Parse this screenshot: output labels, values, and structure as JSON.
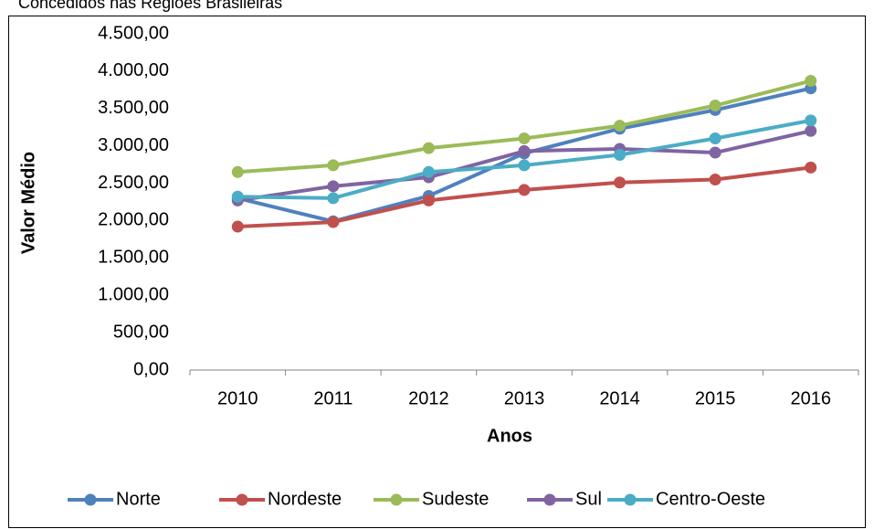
{
  "chart_data": {
    "type": "line",
    "title": "Concedidos nas Regiões Brasileiras",
    "xlabel": "Anos",
    "ylabel": "Valor Médio",
    "categories": [
      "2010",
      "2011",
      "2012",
      "2013",
      "2014",
      "2015",
      "2016"
    ],
    "series": [
      {
        "name": "Norte",
        "color": "#4f81bd",
        "values": [
          2300,
          1990,
          2330,
          2900,
          3230,
          3480,
          3770
        ]
      },
      {
        "name": "Nordeste",
        "color": "#c0504d",
        "values": [
          1920,
          1980,
          2270,
          2410,
          2510,
          2550,
          2710
        ]
      },
      {
        "name": "Sudeste",
        "color": "#9bbb59",
        "values": [
          2650,
          2740,
          2970,
          3100,
          3270,
          3540,
          3870
        ]
      },
      {
        "name": "Sul",
        "color": "#8064a2",
        "values": [
          2270,
          2460,
          2580,
          2930,
          2960,
          2910,
          3200
        ]
      },
      {
        "name": "Centro-Oeste",
        "color": "#4bacc6",
        "values": [
          2320,
          2300,
          2650,
          2740,
          2880,
          3100,
          3340
        ]
      }
    ],
    "ylim": [
      0,
      4500
    ],
    "yticks": [
      {
        "value": 0,
        "label": "0,00"
      },
      {
        "value": 500,
        "label": "500,00"
      },
      {
        "value": 1000,
        "label": "1.000,00"
      },
      {
        "value": 1500,
        "label": "1.500,00"
      },
      {
        "value": 2000,
        "label": "2.000,00"
      },
      {
        "value": 2500,
        "label": "2.500,00"
      },
      {
        "value": 3000,
        "label": "3.000,00"
      },
      {
        "value": 3500,
        "label": "3.500,00"
      },
      {
        "value": 4000,
        "label": "4.000,00"
      },
      {
        "value": 4500,
        "label": "4.500,00"
      }
    ],
    "legend": "bottom"
  }
}
